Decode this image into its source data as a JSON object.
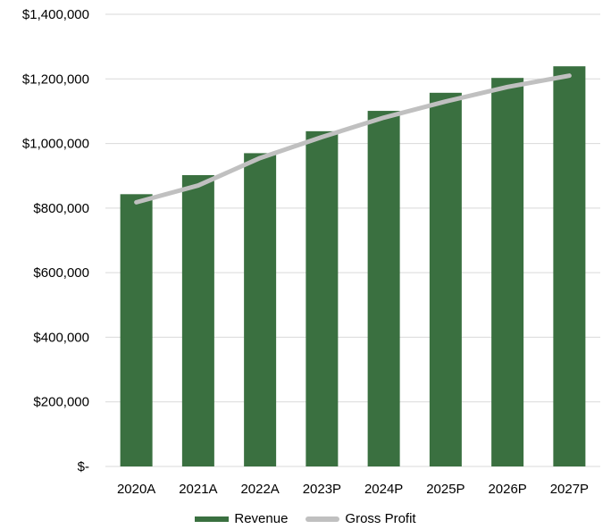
{
  "colors": {
    "revenue": "#3a7040",
    "gross_profit": "#c0c0c0",
    "grid": "#d9d9d9"
  },
  "chart_data": {
    "type": "bar",
    "categories": [
      "2020A",
      "2021A",
      "2022A",
      "2023P",
      "2024P",
      "2025P",
      "2026P",
      "2027P"
    ],
    "series": [
      {
        "name": "Revenue",
        "type": "bar",
        "values": [
          843000,
          902000,
          970000,
          1038000,
          1101000,
          1157000,
          1203000,
          1239000
        ]
      },
      {
        "name": "Gross Profit",
        "type": "line",
        "values": [
          818000,
          870000,
          955000,
          1020000,
          1080000,
          1130000,
          1175000,
          1210000
        ]
      }
    ],
    "yticks": [
      "$-",
      "$200,000",
      "$400,000",
      "$600,000",
      "$800,000",
      "$1,000,000",
      "$1,200,000",
      "$1,400,000"
    ],
    "ylim": [
      0,
      1400000
    ],
    "grid": true,
    "legend_position": "bottom"
  }
}
